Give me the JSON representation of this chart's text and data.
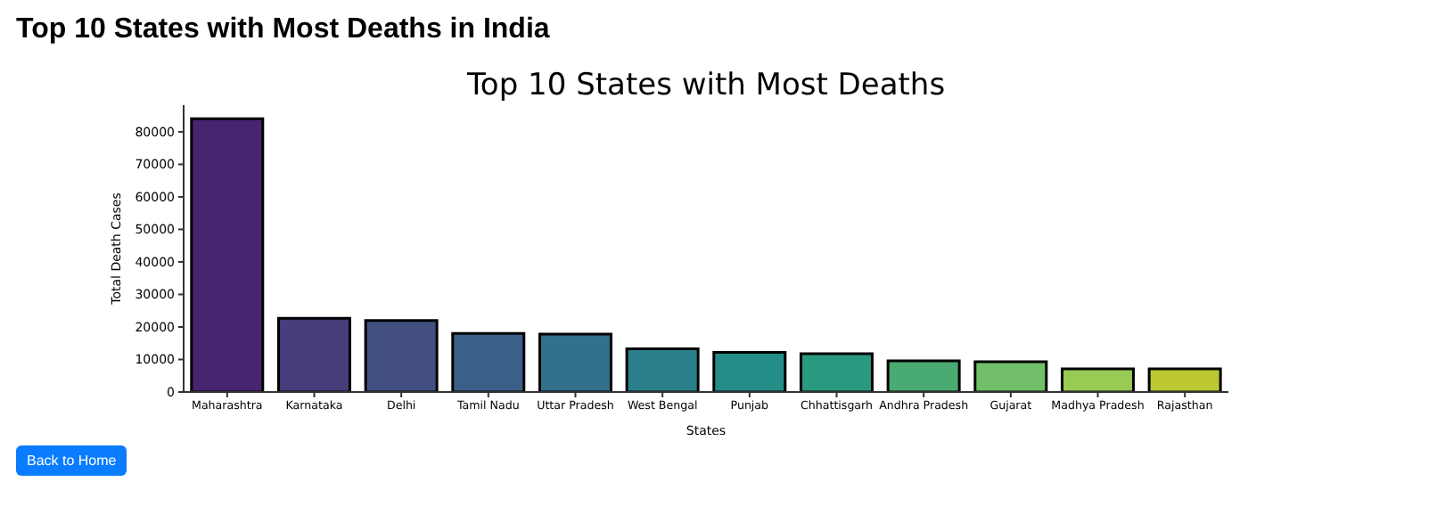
{
  "chart_data": {
    "type": "bar",
    "title": "Top 10 States with Most Deaths",
    "xlabel": "States",
    "ylabel": "Total Death Cases",
    "annotations": [
      "Top 10 States with Most Deaths in India",
      "Back to Home"
    ],
    "categories": [
      "Maharashtra",
      "Karnataka",
      "Delhi",
      "Tamil Nadu",
      "Uttar Pradesh",
      "West Bengal",
      "Punjab",
      "Chhattisgarh",
      "Andhra Pradesh",
      "Gujarat",
      "Madhya Pradesh",
      "Rajasthan"
    ],
    "values": [
      84000,
      22700,
      22000,
      18000,
      17800,
      13300,
      12200,
      11800,
      9600,
      9300,
      7100,
      7100
    ],
    "colors": [
      "#46246e",
      "#483d7a",
      "#424f80",
      "#3b6087",
      "#33708b",
      "#2a7f8a",
      "#258d87",
      "#29997f",
      "#4aab72",
      "#71bf69",
      "#98ca54",
      "#bcc832"
    ],
    "ylim": [
      0,
      88200
    ],
    "yticks": [
      0,
      10000,
      20000,
      30000,
      40000,
      50000,
      60000,
      70000,
      80000
    ],
    "grid": false,
    "legend": false
  }
}
